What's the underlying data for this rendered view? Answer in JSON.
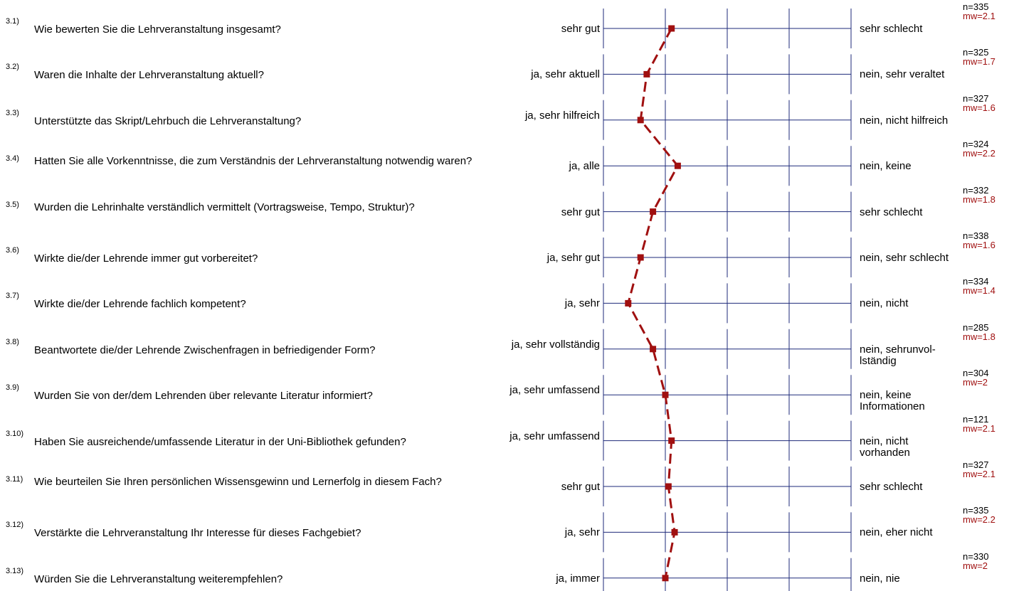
{
  "chart_data": {
    "type": "line",
    "scale_min": 1,
    "scale_max": 5,
    "colors": {
      "mean_line": "#a01010",
      "grid": "#1e2a7a"
    },
    "items": [
      {
        "num": "3.1)",
        "question": "Wie bewerten Sie die Lehrveranstaltung insgesamt?",
        "left": "sehr gut",
        "right": "sehr schlecht",
        "n": "n=335",
        "mw": "mw=2.1",
        "mean": 2.1
      },
      {
        "num": "3.2)",
        "question": "Waren die Inhalte der Lehrveranstaltung aktuell?",
        "left": "ja, sehr aktuell",
        "right": "nein, sehr veraltet",
        "n": "n=325",
        "mw": "mw=1.7",
        "mean": 1.7
      },
      {
        "num": "3.3)",
        "question": "Unterstützte das Skript/Lehrbuch die Lehrveranstaltung?",
        "left": "ja, sehr hilfreich",
        "right": "nein, nicht hilfreich",
        "n": "n=327",
        "mw": "mw=1.6",
        "mean": 1.6
      },
      {
        "num": "3.4)",
        "question": "Hatten Sie alle Vorkenntnisse, die zum Verständnis der Lehrveranstaltung notwendig waren?",
        "left": "ja, alle",
        "right": "nein, keine",
        "n": "n=324",
        "mw": "mw=2.2",
        "mean": 2.2
      },
      {
        "num": "3.5)",
        "question": "Wurden die Lehrinhalte verständlich vermittelt (Vortragsweise, Tempo, Struktur)?",
        "left": "sehr gut",
        "right": "sehr schlecht",
        "n": "n=332",
        "mw": "mw=1.8",
        "mean": 1.8
      },
      {
        "num": "3.6)",
        "question": "Wirkte die/der Lehrende immer gut vorbereitet?",
        "left": "ja, sehr gut",
        "right": "nein, sehr schlecht",
        "n": "n=338",
        "mw": "mw=1.6",
        "mean": 1.6
      },
      {
        "num": "3.7)",
        "question": "Wirkte die/der Lehrende fachlich kompetent?",
        "left": "ja, sehr",
        "right": "nein, nicht",
        "n": "n=334",
        "mw": "mw=1.4",
        "mean": 1.4
      },
      {
        "num": "3.8)",
        "question": "Beantwortete die/der Lehrende Zwischenfragen in befriedigender Form?",
        "left": "ja, sehr vollständig",
        "right": "nein, sehrunvol- lständig",
        "n": "n=285",
        "mw": "mw=1.8",
        "mean": 1.8
      },
      {
        "num": "3.9)",
        "question": "Wurden Sie von der/dem Lehrenden über relevante Literatur informiert?",
        "left": "ja, sehr umfassend",
        "right": "nein, keine Informationen",
        "n": "n=304",
        "mw": "mw=2",
        "mean": 2.0
      },
      {
        "num": "3.10)",
        "question": "Haben Sie ausreichende/umfassende Literatur in der Uni-Bibliothek gefunden?",
        "left": "ja, sehr umfassend",
        "right": "nein, nicht vorhanden",
        "n": "n=121",
        "mw": "mw=2.1",
        "mean": 2.1
      },
      {
        "num": "3.11)",
        "question": "Wie beurteilen Sie Ihren persönlichen Wissensgewinn und Lernerfolg in diesem Fach?",
        "left": "sehr gut",
        "right": "sehr schlecht",
        "n": "n=327",
        "mw": "mw=2.1",
        "mean": 2.05
      },
      {
        "num": "3.12)",
        "question": "Verstärkte die Lehrveranstaltung Ihr Interesse für dieses Fachgebiet?",
        "left": "ja, sehr",
        "right": "nein, eher nicht",
        "n": "n=335",
        "mw": "mw=2.2",
        "mean": 2.15
      },
      {
        "num": "3.13)",
        "question": "Würden Sie die Lehrveranstaltung weiterempfehlen?",
        "left": "ja, immer",
        "right": "nein, nie",
        "n": "n=330",
        "mw": "mw=2",
        "mean": 2.0
      }
    ]
  }
}
